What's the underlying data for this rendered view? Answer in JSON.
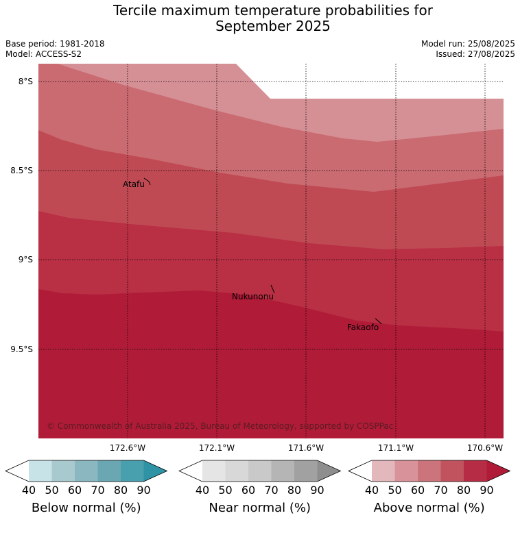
{
  "title": {
    "line1": "Tercile maximum temperature probabilities for",
    "line2": "September 2025"
  },
  "meta": {
    "base_period": "Base period: 1981-2018",
    "model": "Model: ACCESS-S2",
    "model_run": "Model run: 25/08/2025",
    "issued": "Issued: 27/08/2025"
  },
  "map": {
    "latitude_labels": [
      "8°S",
      "8.5°S",
      "9°S",
      "9.5°S"
    ],
    "longitude_labels": [
      "172.6°W",
      "172.1°W",
      "171.6°W",
      "171.1°W",
      "170.6°W"
    ],
    "places": [
      "Atafu",
      "Nukunonu",
      "Fakaofo"
    ],
    "copyright": "© Commonwealth of Australia 2025, Bureau of Meteorology, supported by COSPPac",
    "probability_bands": [
      {
        "category": "Above normal",
        "range": "50-60",
        "color": "#d59096"
      },
      {
        "category": "Above normal",
        "range": "60-70",
        "color": "#ca6b72"
      },
      {
        "category": "Above normal",
        "range": "70-80",
        "color": "#bf4a54"
      },
      {
        "category": "Above normal",
        "range": "80-90",
        "color": "#b92f44"
      },
      {
        "category": "Above normal",
        "range": ">90",
        "color": "#b01c38"
      }
    ]
  },
  "colorbars": [
    {
      "label": "Below normal (%)",
      "ticks": [
        "40",
        "50",
        "60",
        "70",
        "80",
        "90"
      ],
      "colors": [
        "#c8e3e8",
        "#a8c9cd",
        "#8ab7c0",
        "#6aa7b3",
        "#489fae",
        "#2e93a4"
      ]
    },
    {
      "label": "Near normal (%)",
      "ticks": [
        "40",
        "50",
        "60",
        "70",
        "80",
        "90"
      ],
      "colors": [
        "#e5e5e5",
        "#d8d8d8",
        "#c9c9c9",
        "#b5b5b5",
        "#a1a1a1",
        "#8e8e8e"
      ]
    },
    {
      "label": "Above normal (%)",
      "ticks": [
        "40",
        "50",
        "60",
        "70",
        "80",
        "90"
      ],
      "colors": [
        "#e3b8bc",
        "#d8939a",
        "#cc747b",
        "#c1535e",
        "#b62c45",
        "#b01c38"
      ]
    }
  ]
}
